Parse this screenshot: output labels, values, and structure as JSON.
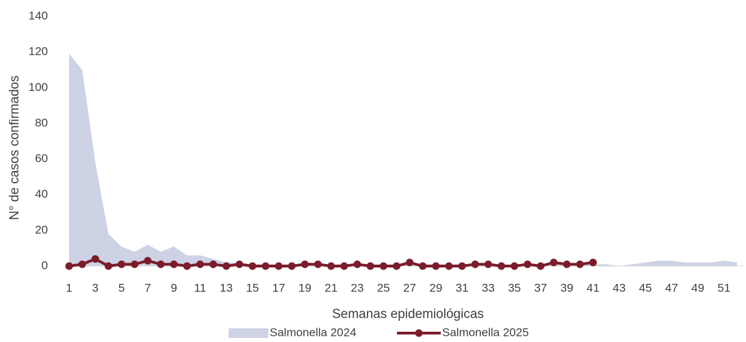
{
  "chart_data": {
    "type": "line",
    "x_label": "Semanas epidemiológicas",
    "y_label": "N° de casos confirmados",
    "x": [
      1,
      2,
      3,
      4,
      5,
      6,
      7,
      8,
      9,
      10,
      11,
      12,
      13,
      14,
      15,
      16,
      17,
      18,
      19,
      20,
      21,
      22,
      23,
      24,
      25,
      26,
      27,
      28,
      29,
      30,
      31,
      32,
      33,
      34,
      35,
      36,
      37,
      38,
      39,
      40,
      41,
      42,
      43,
      44,
      45,
      46,
      47,
      48,
      49,
      50,
      51,
      52
    ],
    "xlim": [
      1,
      52
    ],
    "xticks": [
      1,
      3,
      5,
      7,
      9,
      11,
      13,
      15,
      17,
      19,
      21,
      23,
      25,
      27,
      29,
      31,
      33,
      35,
      37,
      39,
      41,
      43,
      45,
      47,
      49,
      51
    ],
    "ylim": [
      0,
      140
    ],
    "yticks": [
      0,
      20,
      40,
      60,
      80,
      100,
      120,
      140
    ],
    "grid": false,
    "legend": "bottom",
    "series": [
      {
        "name": "Salmonella 2024",
        "kind": "area",
        "color": "#cdd2e4",
        "values": [
          119,
          110,
          58,
          18,
          11,
          8,
          12,
          8,
          11,
          6,
          6,
          4,
          2,
          2,
          1,
          1,
          1,
          1,
          1,
          1,
          1,
          1,
          1,
          1,
          1,
          1,
          1,
          1,
          1,
          1,
          1,
          1,
          1,
          1,
          1,
          1,
          1,
          1,
          1,
          1,
          1,
          1,
          0,
          1,
          2,
          3,
          3,
          2,
          2,
          2,
          3,
          2
        ]
      },
      {
        "name": "Salmonella 2025",
        "kind": "line",
        "color": "#7b1c2b",
        "values": [
          0,
          1,
          4,
          0,
          1,
          1,
          3,
          1,
          1,
          0,
          1,
          1,
          0,
          1,
          0,
          0,
          0,
          0,
          1,
          1,
          0,
          0,
          1,
          0,
          0,
          0,
          2,
          0,
          0,
          0,
          0,
          1,
          1,
          0,
          0,
          1,
          0,
          2,
          1,
          1,
          2,
          null,
          null,
          null,
          null,
          null,
          null,
          null,
          null,
          null,
          null,
          null
        ]
      }
    ]
  }
}
